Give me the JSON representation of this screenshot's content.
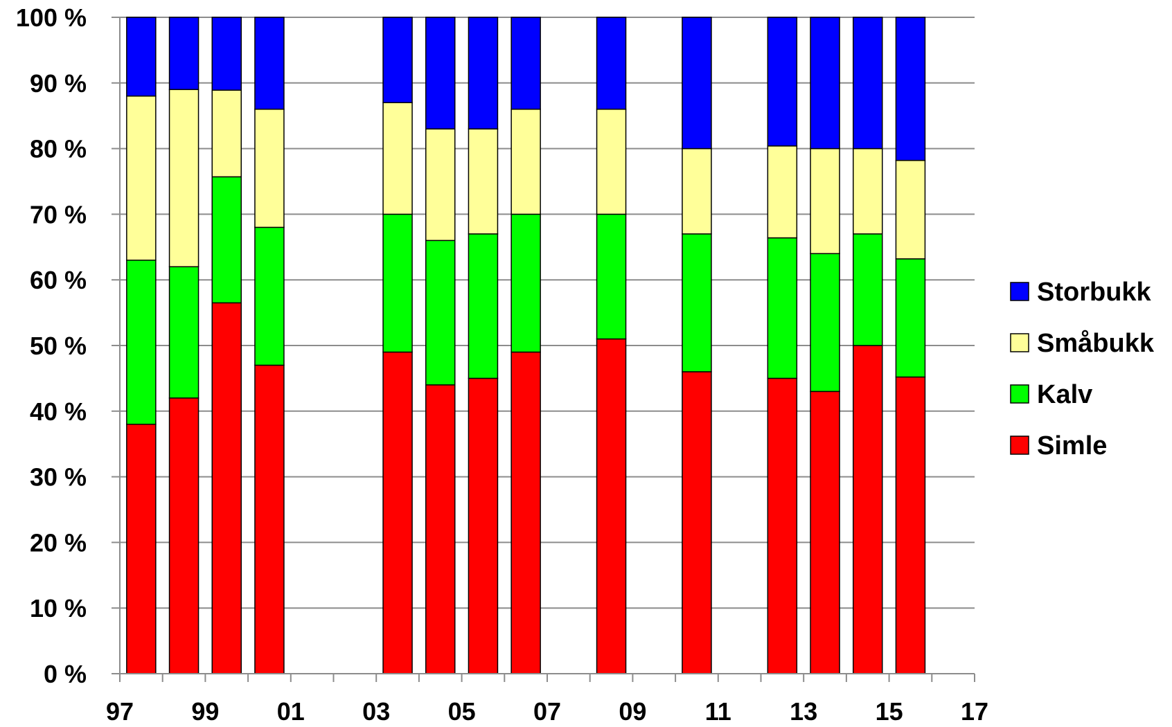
{
  "chart_data": {
    "type": "bar",
    "stacked": true,
    "percent": true,
    "x_tick_labels": [
      "97",
      "99",
      "01",
      "03",
      "05",
      "07",
      "09",
      "11",
      "13",
      "15",
      "17"
    ],
    "x_tick_years": [
      1997,
      1999,
      2001,
      2003,
      2005,
      2007,
      2009,
      2011,
      2013,
      2015,
      2017
    ],
    "xlim": [
      1997,
      2017
    ],
    "categories": [
      "1998",
      "1999",
      "2000",
      "2001",
      "2004",
      "2005",
      "2006",
      "2007",
      "2009",
      "2011",
      "2013",
      "2014",
      "2015",
      "2016"
    ],
    "x": [
      1998,
      1999,
      2000,
      2001,
      2004,
      2005,
      2006,
      2007,
      2009,
      2011,
      2013,
      2014,
      2015,
      2016
    ],
    "ylim": [
      0,
      100
    ],
    "y_tick_labels": [
      "0 %",
      "10 %",
      "20 %",
      "30 %",
      "40 %",
      "50 %",
      "60 %",
      "70 %",
      "80 %",
      "90 %",
      "100 %"
    ],
    "grid": true,
    "legend_position": "right",
    "series": [
      {
        "name": "Simle",
        "color": "#ff0000",
        "values": [
          38,
          42,
          56.5,
          47,
          49,
          44,
          45,
          49,
          51,
          46,
          45,
          43,
          50,
          45.2
        ]
      },
      {
        "name": "Kalv",
        "color": "#00ff00",
        "values": [
          25,
          20,
          19.2,
          21,
          21,
          22,
          22,
          21,
          19,
          21,
          21.4,
          21,
          17,
          18
        ]
      },
      {
        "name": "Småbukk",
        "color": "#ffff99",
        "values": [
          25,
          27,
          13.2,
          18,
          17,
          17,
          16,
          16,
          16,
          13,
          14,
          16,
          13,
          15
        ]
      },
      {
        "name": "Storbukk",
        "color": "#0000ff",
        "values": [
          12,
          11,
          11.1,
          14,
          13,
          17,
          17,
          14,
          14,
          20,
          19.6,
          20,
          20,
          21.8
        ]
      }
    ],
    "legend_order": [
      "Storbukk",
      "Småbukk",
      "Kalv",
      "Simle"
    ]
  }
}
